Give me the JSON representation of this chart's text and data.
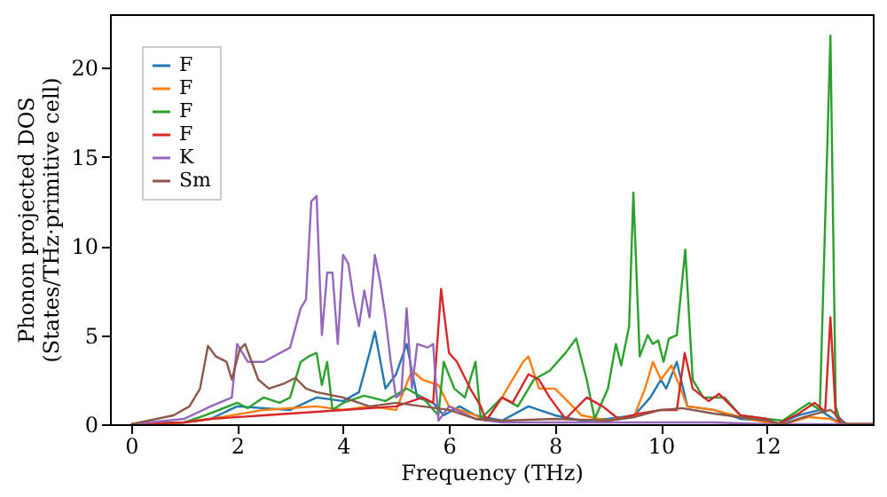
{
  "chart_data": {
    "type": "line",
    "xlabel": "Frequency (THz)",
    "ylabel": "Phonon projected DOS\n(States/THz·primitive cell)",
    "xlim": [
      -0.4,
      14
    ],
    "ylim": [
      0,
      23
    ],
    "xticks": [
      0,
      2,
      4,
      6,
      8,
      10,
      12
    ],
    "yticks": [
      0,
      5,
      10,
      15,
      20
    ],
    "grid": false,
    "legend": "top left",
    "line_style": "solid",
    "marker": "none",
    "series": [
      {
        "name": "F",
        "color": "#1f77b4",
        "x": [
          0,
          1,
          1.5,
          2,
          3,
          3.5,
          4,
          4.3,
          4.5,
          4.6,
          4.8,
          5,
          5.2,
          5.4,
          5.7,
          5.9,
          6.2,
          6.5,
          7,
          7.5,
          8,
          8.5,
          9,
          9.5,
          9.8,
          10,
          10.1,
          10.3,
          10.5,
          11,
          11.5,
          12,
          12.2,
          12.6,
          13,
          13.3,
          13.5,
          14
        ],
        "values": [
          0,
          0.1,
          0.3,
          1,
          0.8,
          1.5,
          1.3,
          1.8,
          4,
          5.2,
          2,
          2.8,
          4.5,
          1.5,
          1.2,
          0.5,
          1,
          0.5,
          0.2,
          1,
          0.5,
          0.2,
          0.3,
          0.5,
          1.5,
          2.5,
          2,
          3.5,
          1,
          0.8,
          0.3,
          0.2,
          0,
          0.5,
          0.8,
          0.2,
          0,
          0
        ]
      },
      {
        "name": "F",
        "color": "#ff7f0e",
        "x": [
          0,
          1,
          1.5,
          2.5,
          3.5,
          4,
          4.5,
          5,
          5.3,
          5.5,
          5.8,
          6,
          6.5,
          6.7,
          7,
          7.4,
          7.5,
          7.7,
          8,
          8.5,
          9,
          9.5,
          9.7,
          9.85,
          10,
          10.2,
          10.5,
          11,
          11.5,
          12,
          12.3,
          12.8,
          13.2,
          13.4,
          14
        ],
        "values": [
          0,
          0.1,
          0.3,
          0.8,
          1,
          0.8,
          1,
          0.8,
          3,
          2.5,
          2.2,
          1,
          0.5,
          0.2,
          1.5,
          3.5,
          3.8,
          2,
          2,
          0.5,
          0.2,
          0.5,
          2,
          3.5,
          2.5,
          3.3,
          1,
          0.8,
          0.4,
          0.1,
          0,
          0.4,
          0.3,
          0,
          0
        ]
      },
      {
        "name": "F",
        "color": "#2ca02c",
        "x": [
          0,
          1,
          1.4,
          2,
          2.2,
          2.5,
          2.8,
          3,
          3.2,
          3.35,
          3.5,
          3.6,
          3.7,
          3.8,
          4,
          4.4,
          4.8,
          5.2,
          5.5,
          5.8,
          5.9,
          6.1,
          6.3,
          6.5,
          6.6,
          7,
          7.3,
          7.6,
          7.9,
          8.2,
          8.4,
          8.6,
          8.75,
          9,
          9.15,
          9.25,
          9.4,
          9.48,
          9.6,
          9.75,
          9.85,
          9.95,
          10.05,
          10.15,
          10.3,
          10.46,
          10.6,
          10.8,
          11.2,
          11.5,
          12,
          12.3,
          12.6,
          12.8,
          13,
          13.2,
          13.3,
          13.4,
          14
        ],
        "values": [
          0,
          0.1,
          0.5,
          1.2,
          0.9,
          1.5,
          1.2,
          1.5,
          3.5,
          3.8,
          4,
          2.2,
          3.5,
          0.8,
          1.2,
          1.6,
          1.3,
          2,
          1.5,
          0.5,
          3.5,
          2,
          1.5,
          3.5,
          0.3,
          1.5,
          1,
          2.5,
          3,
          4,
          4.8,
          2.5,
          0.3,
          2,
          4.5,
          3.3,
          5.5,
          13,
          3.8,
          5,
          4.5,
          4.7,
          3.5,
          4.8,
          5,
          9.8,
          2.5,
          1.5,
          1.5,
          0.5,
          0.3,
          0.2,
          0.8,
          1.2,
          0.8,
          21.8,
          1,
          0,
          0
        ]
      },
      {
        "name": "F",
        "color": "#d62728",
        "x": [
          0,
          1,
          1.5,
          2.5,
          3.5,
          4,
          5,
          5.5,
          5.7,
          5.85,
          6,
          6.15,
          6.4,
          6.6,
          6.7,
          7,
          7.2,
          7.5,
          7.7,
          7.9,
          8.2,
          8.6,
          8.9,
          9.2,
          9.6,
          10,
          10.3,
          10.45,
          10.6,
          10.9,
          11.1,
          11.5,
          12,
          12.2,
          12.6,
          12.9,
          13.1,
          13.2,
          13.3,
          13.4,
          14
        ],
        "values": [
          0,
          0.1,
          0.3,
          0.5,
          0.7,
          0.8,
          1,
          1.5,
          1.2,
          7.6,
          4,
          3.5,
          2,
          1,
          0.2,
          1.5,
          1.2,
          2.8,
          2.5,
          1.5,
          0.3,
          1.5,
          1,
          0.3,
          0.6,
          0.8,
          0.8,
          4,
          2,
          1.3,
          1.7,
          0.5,
          0.3,
          0,
          0.6,
          1.2,
          0.7,
          6,
          0.5,
          0,
          0
        ]
      },
      {
        "name": "K",
        "color": "#9467bd",
        "x": [
          0,
          1,
          1.5,
          1.9,
          2.0,
          2.2,
          2.5,
          3,
          3.2,
          3.3,
          3.4,
          3.5,
          3.6,
          3.7,
          3.8,
          3.9,
          4.0,
          4.1,
          4.2,
          4.3,
          4.4,
          4.5,
          4.6,
          4.7,
          4.8,
          4.9,
          5.0,
          5.1,
          5.2,
          5.3,
          5.4,
          5.6,
          5.7,
          5.8,
          6.0,
          6.5,
          7,
          8,
          9,
          10,
          11,
          12,
          13,
          14
        ],
        "values": [
          0,
          0.3,
          1,
          1.5,
          4.5,
          3.5,
          3.5,
          4.3,
          6.5,
          7,
          12.5,
          12.8,
          5,
          8.5,
          8.5,
          4.5,
          9.5,
          9,
          7,
          5.5,
          7.5,
          6,
          9.5,
          8,
          6,
          3.5,
          1.5,
          1.7,
          6.5,
          2,
          4.5,
          4.3,
          4.5,
          0.2,
          1,
          0.3,
          0.1,
          0.1,
          0.1,
          0.1,
          0.1,
          0,
          0,
          0
        ]
      },
      {
        "name": "Sm",
        "color": "#8c564b",
        "x": [
          0,
          0.8,
          1.1,
          1.3,
          1.45,
          1.6,
          1.8,
          1.9,
          2.05,
          2.15,
          2.4,
          2.6,
          2.9,
          3.1,
          3.3,
          3.5,
          4,
          4.5,
          5,
          5.5,
          6,
          6.5,
          7,
          8,
          9,
          9.5,
          10,
          10.4,
          11,
          12,
          12.3,
          12.7,
          13.2,
          13.5,
          14
        ],
        "values": [
          0,
          0.5,
          1,
          2,
          4.4,
          3.8,
          3.5,
          2.5,
          4.2,
          4.5,
          2.5,
          2,
          2.3,
          2.6,
          2,
          1.8,
          1.5,
          1,
          1.2,
          1,
          0.8,
          0.3,
          0.2,
          0.3,
          0.2,
          0.4,
          0.8,
          0.9,
          0.6,
          0.2,
          0,
          0.4,
          0.8,
          0,
          0
        ]
      }
    ]
  }
}
